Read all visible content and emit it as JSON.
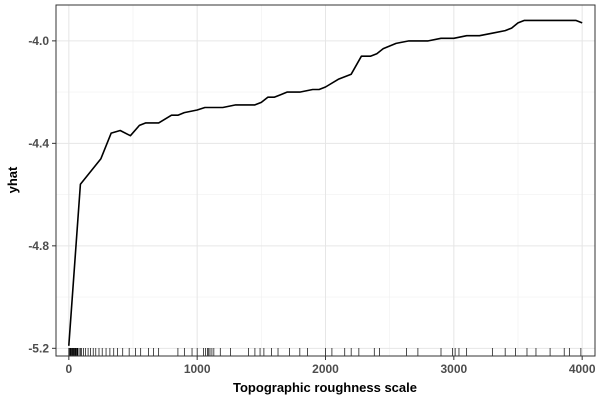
{
  "chart_data": {
    "type": "line",
    "title": "",
    "xlabel": "Topographic roughness scale",
    "ylabel": "yhat",
    "xlim": [
      -100,
      4100
    ],
    "ylim": [
      -5.23,
      -3.86
    ],
    "x_ticks": [
      0,
      1000,
      2000,
      3000,
      4000
    ],
    "x_tick_labels": [
      "0",
      "1000",
      "2000",
      "3000",
      "4000"
    ],
    "y_ticks": [
      -5.2,
      -4.8,
      -4.4,
      -4.0
    ],
    "y_tick_labels": [
      "-5.2",
      "-4.8",
      "-4.4",
      "-4.0"
    ],
    "grid": true,
    "line_color": "#000000",
    "series": [
      {
        "x": [
          0,
          90,
          250,
          330,
          400,
          480,
          550,
          600,
          650,
          700,
          800,
          850,
          900,
          1000,
          1060,
          1200,
          1300,
          1450,
          1500,
          1550,
          1600,
          1650,
          1700,
          1800,
          1900,
          1950,
          2000,
          2100,
          2200,
          2280,
          2350,
          2400,
          2450,
          2500,
          2550,
          2650,
          2800,
          2900,
          3000,
          3100,
          3200,
          3300,
          3400,
          3450,
          3500,
          3550,
          3600,
          3700,
          3800,
          3900,
          3950,
          4000
        ],
        "y": [
          -5.19,
          -4.56,
          -4.46,
          -4.36,
          -4.35,
          -4.37,
          -4.33,
          -4.32,
          -4.32,
          -4.32,
          -4.29,
          -4.29,
          -4.28,
          -4.27,
          -4.26,
          -4.26,
          -4.25,
          -4.25,
          -4.24,
          -4.22,
          -4.22,
          -4.21,
          -4.2,
          -4.2,
          -4.19,
          -4.19,
          -4.18,
          -4.15,
          -4.13,
          -4.06,
          -4.06,
          -4.05,
          -4.03,
          -4.02,
          -4.01,
          -4.0,
          -4.0,
          -3.99,
          -3.99,
          -3.98,
          -3.98,
          -3.97,
          -3.96,
          -3.95,
          -3.93,
          -3.92,
          -3.92,
          -3.92,
          -3.92,
          -3.92,
          -3.92,
          -3.93
        ]
      }
    ],
    "rug_x": [
      0,
      5,
      10,
      15,
      20,
      25,
      30,
      35,
      40,
      45,
      50,
      55,
      60,
      65,
      70,
      80,
      90,
      100,
      115,
      130,
      150,
      170,
      190,
      210,
      235,
      260,
      290,
      320,
      350,
      380,
      420,
      470,
      520,
      560,
      620,
      660,
      700,
      850,
      900,
      960,
      1000,
      1050,
      1065,
      1080,
      1090,
      1100,
      1115,
      1130,
      1180,
      1260,
      1400,
      1450,
      1490,
      1520,
      1580,
      1630,
      1720,
      1800,
      1860,
      2000,
      2050,
      2150,
      2200,
      2260,
      2380,
      2420,
      2630,
      2720,
      2900,
      2990,
      3010,
      3040,
      3100,
      3300,
      3400,
      3480,
      3570,
      3640,
      3750,
      3860,
      3900,
      3990
    ]
  }
}
